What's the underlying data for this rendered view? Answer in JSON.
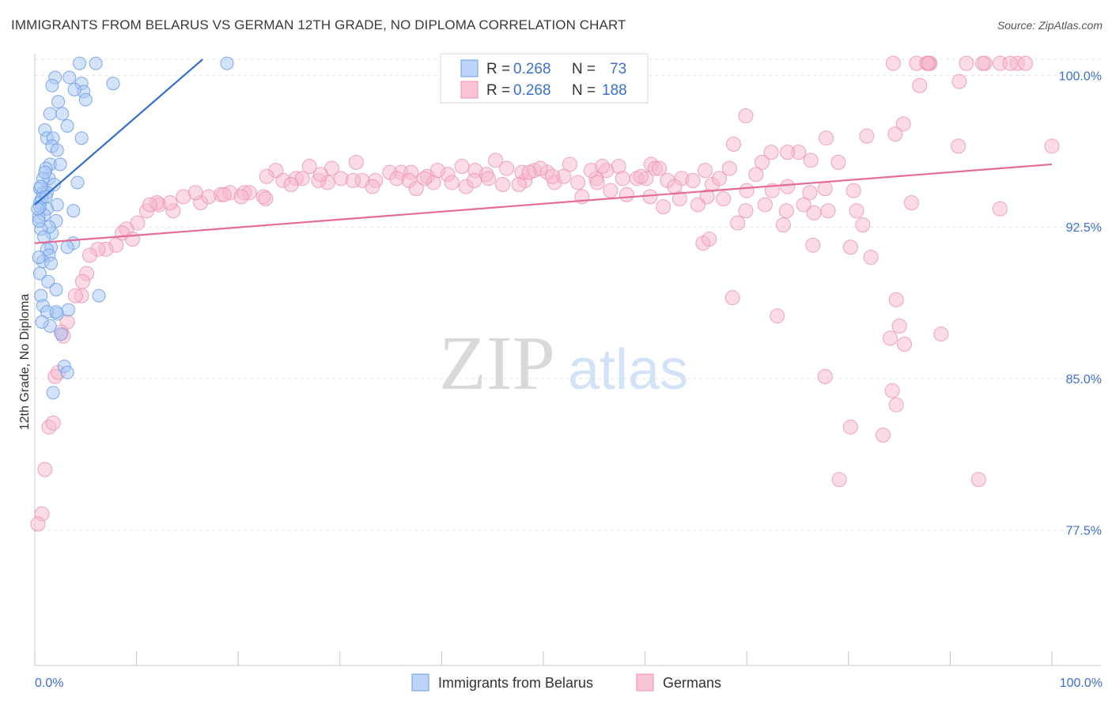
{
  "header": {
    "title": "IMMIGRANTS FROM BELARUS VS GERMAN 12TH GRADE, NO DIPLOMA CORRELATION CHART",
    "source": "Source: ZipAtlas.com"
  },
  "watermark": {
    "part1": "ZIP",
    "part2": "atlas"
  },
  "legend": {
    "series1": {
      "r_label": "R = ",
      "r_value": "0.268",
      "n_label": "N = ",
      "n_value": "73"
    },
    "series2": {
      "r_label": "R = ",
      "r_value": "0.268",
      "n_label": "N = ",
      "n_value": "188"
    }
  },
  "colors": {
    "blue_fill": "#a9c8f5",
    "blue_stroke": "#6a9be6",
    "blue_line": "#2f6fd0",
    "pink_fill": "#f6b8cd",
    "pink_stroke": "#ee8fb0",
    "pink_line": "#e56b98",
    "value_text": "#3b6fd4"
  },
  "chart_data": {
    "type": "scatter",
    "title": "IMMIGRANTS FROM BELARUS VS GERMAN 12TH GRADE, NO DIPLOMA CORRELATION CHART",
    "xlabel": "",
    "ylabel": "12th Grade, No Diploma",
    "xlim": [
      0,
      100
    ],
    "ylim": [
      70.8,
      100.8
    ],
    "x_tick_labels": [
      "0.0%",
      "100.0%"
    ],
    "y_ticks": [
      100.0,
      92.5,
      85.0,
      77.5
    ],
    "y_tick_labels": [
      "100.0%",
      "92.5%",
      "85.0%",
      "77.5%"
    ],
    "grid": true,
    "legend_position": "top-center",
    "series": [
      {
        "name": "Immigrants from Belarus",
        "color": "#a9c8f5",
        "trend": {
          "x": [
            0,
            16.5
          ],
          "y": [
            93.6,
            100.8
          ]
        },
        "points": [
          [
            4.4,
            100.6
          ],
          [
            6.0,
            100.6
          ],
          [
            18.9,
            100.6
          ],
          [
            2.0,
            99.9
          ],
          [
            3.4,
            99.9
          ],
          [
            1.7,
            99.5
          ],
          [
            4.6,
            99.6
          ],
          [
            7.7,
            99.6
          ],
          [
            4.8,
            99.2
          ],
          [
            5.0,
            98.8
          ],
          [
            3.9,
            99.3
          ],
          [
            2.3,
            98.7
          ],
          [
            1.5,
            98.1
          ],
          [
            2.7,
            98.1
          ],
          [
            3.2,
            97.5
          ],
          [
            1.0,
            97.3
          ],
          [
            1.2,
            96.9
          ],
          [
            1.8,
            96.9
          ],
          [
            4.6,
            96.9
          ],
          [
            1.7,
            96.5
          ],
          [
            2.2,
            96.3
          ],
          [
            1.5,
            95.6
          ],
          [
            1.1,
            95.4
          ],
          [
            1.4,
            94.9
          ],
          [
            4.2,
            94.7
          ],
          [
            0.8,
            94.9
          ],
          [
            0.5,
            94.4
          ],
          [
            1.9,
            94.6
          ],
          [
            0.8,
            94.2
          ],
          [
            1.2,
            94.2
          ],
          [
            0.7,
            93.9
          ],
          [
            2.2,
            93.6
          ],
          [
            0.5,
            93.7
          ],
          [
            1.2,
            93.4
          ],
          [
            0.9,
            93.1
          ],
          [
            0.4,
            93.0
          ],
          [
            3.8,
            93.3
          ],
          [
            2.1,
            92.8
          ],
          [
            1.7,
            92.2
          ],
          [
            1.4,
            92.5
          ],
          [
            0.6,
            92.4
          ],
          [
            1.6,
            91.5
          ],
          [
            3.8,
            91.7
          ],
          [
            1.2,
            91.4
          ],
          [
            3.2,
            91.5
          ],
          [
            1.4,
            91.1
          ],
          [
            0.8,
            90.8
          ],
          [
            1.6,
            90.7
          ],
          [
            0.5,
            90.2
          ],
          [
            1.3,
            89.8
          ],
          [
            2.1,
            89.4
          ],
          [
            0.6,
            89.1
          ],
          [
            6.3,
            89.1
          ],
          [
            0.8,
            88.6
          ],
          [
            2.2,
            88.2
          ],
          [
            3.3,
            88.4
          ],
          [
            1.2,
            88.3
          ],
          [
            2.1,
            88.3
          ],
          [
            1.5,
            87.6
          ],
          [
            0.7,
            87.8
          ],
          [
            2.6,
            87.2
          ],
          [
            2.9,
            85.6
          ],
          [
            3.2,
            85.3
          ],
          [
            1.8,
            84.3
          ],
          [
            0.5,
            93.5
          ],
          [
            0.6,
            94.5
          ],
          [
            1.0,
            95.2
          ],
          [
            2.5,
            95.6
          ],
          [
            0.4,
            91.0
          ],
          [
            0.9,
            92.0
          ],
          [
            0.3,
            93.4
          ],
          [
            1.1,
            94.0
          ],
          [
            0.4,
            92.8
          ]
        ]
      },
      {
        "name": "Germans",
        "color": "#f6b8cd",
        "trend": {
          "x": [
            0,
            100
          ],
          "y": [
            91.7,
            95.6
          ]
        },
        "points": [
          [
            88.0,
            100.6
          ],
          [
            87.8,
            100.6
          ],
          [
            86.7,
            100.6
          ],
          [
            93.4,
            100.6
          ],
          [
            96.6,
            100.6
          ],
          [
            97.4,
            100.6
          ],
          [
            93.2,
            100.6
          ],
          [
            87.7,
            100.6
          ],
          [
            91.6,
            100.6
          ],
          [
            94.9,
            100.6
          ],
          [
            87.9,
            100.6
          ],
          [
            84.4,
            100.6
          ],
          [
            95.9,
            100.6
          ],
          [
            90.9,
            99.7
          ],
          [
            87.0,
            99.5
          ],
          [
            100,
            96.5
          ],
          [
            94.9,
            93.4
          ],
          [
            90.8,
            96.5
          ],
          [
            85.4,
            97.6
          ],
          [
            81.8,
            97.0
          ],
          [
            77.8,
            96.9
          ],
          [
            69.9,
            98.0
          ],
          [
            68.7,
            96.6
          ],
          [
            72.4,
            96.2
          ],
          [
            75.1,
            96.2
          ],
          [
            74.0,
            96.2
          ],
          [
            79.0,
            95.7
          ],
          [
            76.3,
            95.8
          ],
          [
            84.6,
            97.1
          ],
          [
            71.5,
            95.7
          ],
          [
            68.3,
            95.4
          ],
          [
            65.9,
            95.3
          ],
          [
            57.4,
            95.5
          ],
          [
            60.6,
            95.6
          ],
          [
            52.6,
            95.6
          ],
          [
            61.0,
            95.4
          ],
          [
            61.4,
            95.4
          ],
          [
            62.2,
            94.8
          ],
          [
            59.2,
            94.9
          ],
          [
            57.8,
            94.9
          ],
          [
            56.2,
            95.3
          ],
          [
            55.2,
            94.9
          ],
          [
            54.7,
            95.3
          ],
          [
            55.3,
            94.7
          ],
          [
            51.1,
            94.7
          ],
          [
            49.1,
            95.3
          ],
          [
            48.2,
            94.8
          ],
          [
            50.4,
            95.2
          ],
          [
            44.4,
            95.1
          ],
          [
            45.3,
            95.8
          ],
          [
            42.0,
            95.5
          ],
          [
            43.3,
            95.3
          ],
          [
            38.6,
            95.0
          ],
          [
            36.0,
            95.2
          ],
          [
            34.9,
            95.2
          ],
          [
            31.6,
            95.7
          ],
          [
            29.2,
            95.4
          ],
          [
            27.0,
            95.5
          ],
          [
            24.4,
            94.8
          ],
          [
            25.7,
            94.9
          ],
          [
            22.5,
            94.0
          ],
          [
            20.6,
            94.2
          ],
          [
            18.3,
            94.1
          ],
          [
            16.3,
            93.7
          ],
          [
            13.6,
            93.3
          ],
          [
            12.2,
            93.6
          ],
          [
            11.0,
            93.3
          ],
          [
            10.1,
            92.7
          ],
          [
            9.0,
            92.4
          ],
          [
            8.6,
            92.2
          ],
          [
            9.6,
            91.9
          ],
          [
            8.0,
            91.6
          ],
          [
            7.0,
            91.4
          ],
          [
            6.2,
            91.4
          ],
          [
            5.4,
            91.1
          ],
          [
            5.1,
            90.2
          ],
          [
            4.7,
            89.8
          ],
          [
            4.6,
            89.1
          ],
          [
            4.0,
            89.1
          ],
          [
            3.2,
            87.8
          ],
          [
            2.6,
            87.3
          ],
          [
            2.8,
            87.1
          ],
          [
            2.0,
            85.1
          ],
          [
            2.3,
            85.3
          ],
          [
            1.4,
            82.6
          ],
          [
            1.8,
            82.8
          ],
          [
            1.0,
            80.5
          ],
          [
            0.7,
            78.3
          ],
          [
            0.3,
            77.8
          ],
          [
            60.5,
            94.0
          ],
          [
            56.6,
            94.3
          ],
          [
            53.8,
            94.0
          ],
          [
            58.2,
            94.1
          ],
          [
            63.4,
            93.9
          ],
          [
            66.1,
            94.0
          ],
          [
            67.7,
            93.9
          ],
          [
            70.0,
            94.3
          ],
          [
            72.5,
            94.3
          ],
          [
            74.0,
            94.5
          ],
          [
            76.2,
            94.2
          ],
          [
            77.7,
            94.4
          ],
          [
            80.5,
            94.3
          ],
          [
            65.2,
            93.6
          ],
          [
            61.8,
            93.5
          ],
          [
            69.9,
            93.3
          ],
          [
            71.8,
            93.6
          ],
          [
            73.9,
            93.3
          ],
          [
            76.6,
            93.2
          ],
          [
            78.0,
            93.3
          ],
          [
            80.8,
            93.3
          ],
          [
            86.2,
            93.7
          ],
          [
            69.1,
            92.7
          ],
          [
            73.6,
            92.6
          ],
          [
            75.6,
            93.6
          ],
          [
            81.4,
            92.6
          ],
          [
            65.7,
            91.7
          ],
          [
            66.3,
            91.9
          ],
          [
            76.5,
            91.6
          ],
          [
            80.2,
            91.5
          ],
          [
            82.2,
            91.0
          ],
          [
            68.6,
            89.0
          ],
          [
            73.0,
            88.1
          ],
          [
            84.7,
            88.9
          ],
          [
            85.0,
            87.6
          ],
          [
            89.1,
            87.2
          ],
          [
            84.1,
            87.0
          ],
          [
            85.5,
            86.7
          ],
          [
            77.7,
            85.1
          ],
          [
            80.2,
            82.6
          ],
          [
            84.3,
            84.4
          ],
          [
            84.7,
            83.7
          ],
          [
            83.4,
            82.2
          ],
          [
            79.1,
            80.0
          ],
          [
            92.8,
            80.0
          ],
          [
            37.0,
            95.2
          ],
          [
            39.2,
            94.7
          ],
          [
            40.6,
            95.1
          ],
          [
            41.0,
            94.7
          ],
          [
            33.5,
            94.8
          ],
          [
            30.1,
            94.9
          ],
          [
            28.8,
            94.7
          ],
          [
            26.3,
            94.9
          ],
          [
            23.7,
            95.3
          ],
          [
            22.8,
            95.0
          ],
          [
            21.1,
            94.2
          ],
          [
            19.2,
            94.2
          ],
          [
            17.1,
            94.0
          ],
          [
            15.8,
            94.2
          ],
          [
            14.6,
            94.0
          ],
          [
            13.3,
            93.7
          ],
          [
            12.0,
            93.7
          ],
          [
            11.3,
            93.6
          ],
          [
            46.4,
            95.4
          ],
          [
            47.9,
            95.2
          ],
          [
            49.7,
            95.4
          ],
          [
            44.6,
            94.9
          ],
          [
            42.4,
            94.5
          ],
          [
            35.6,
            94.9
          ],
          [
            32.2,
            94.8
          ],
          [
            31.3,
            94.8
          ],
          [
            52.0,
            95.0
          ],
          [
            53.4,
            94.7
          ],
          [
            60.1,
            94.9
          ],
          [
            63.6,
            94.9
          ],
          [
            64.7,
            94.8
          ],
          [
            66.6,
            94.6
          ],
          [
            67.3,
            94.9
          ],
          [
            70.9,
            95.1
          ],
          [
            25.2,
            94.6
          ],
          [
            27.9,
            94.8
          ],
          [
            36.8,
            94.8
          ],
          [
            38.3,
            94.9
          ],
          [
            47.6,
            94.6
          ],
          [
            50.9,
            95.0
          ],
          [
            22.7,
            93.9
          ],
          [
            18.6,
            94.1
          ],
          [
            33.2,
            94.5
          ],
          [
            43.2,
            94.8
          ],
          [
            48.6,
            95.2
          ],
          [
            55.8,
            95.5
          ],
          [
            59.6,
            95.0
          ],
          [
            62.9,
            94.5
          ],
          [
            46.0,
            94.6
          ],
          [
            39.6,
            95.3
          ],
          [
            28.1,
            95.1
          ],
          [
            20.3,
            94.0
          ],
          [
            37.5,
            94.4
          ]
        ]
      }
    ]
  },
  "bottom_legend": {
    "item1": "Immigrants from Belarus",
    "item2": "Germans"
  }
}
